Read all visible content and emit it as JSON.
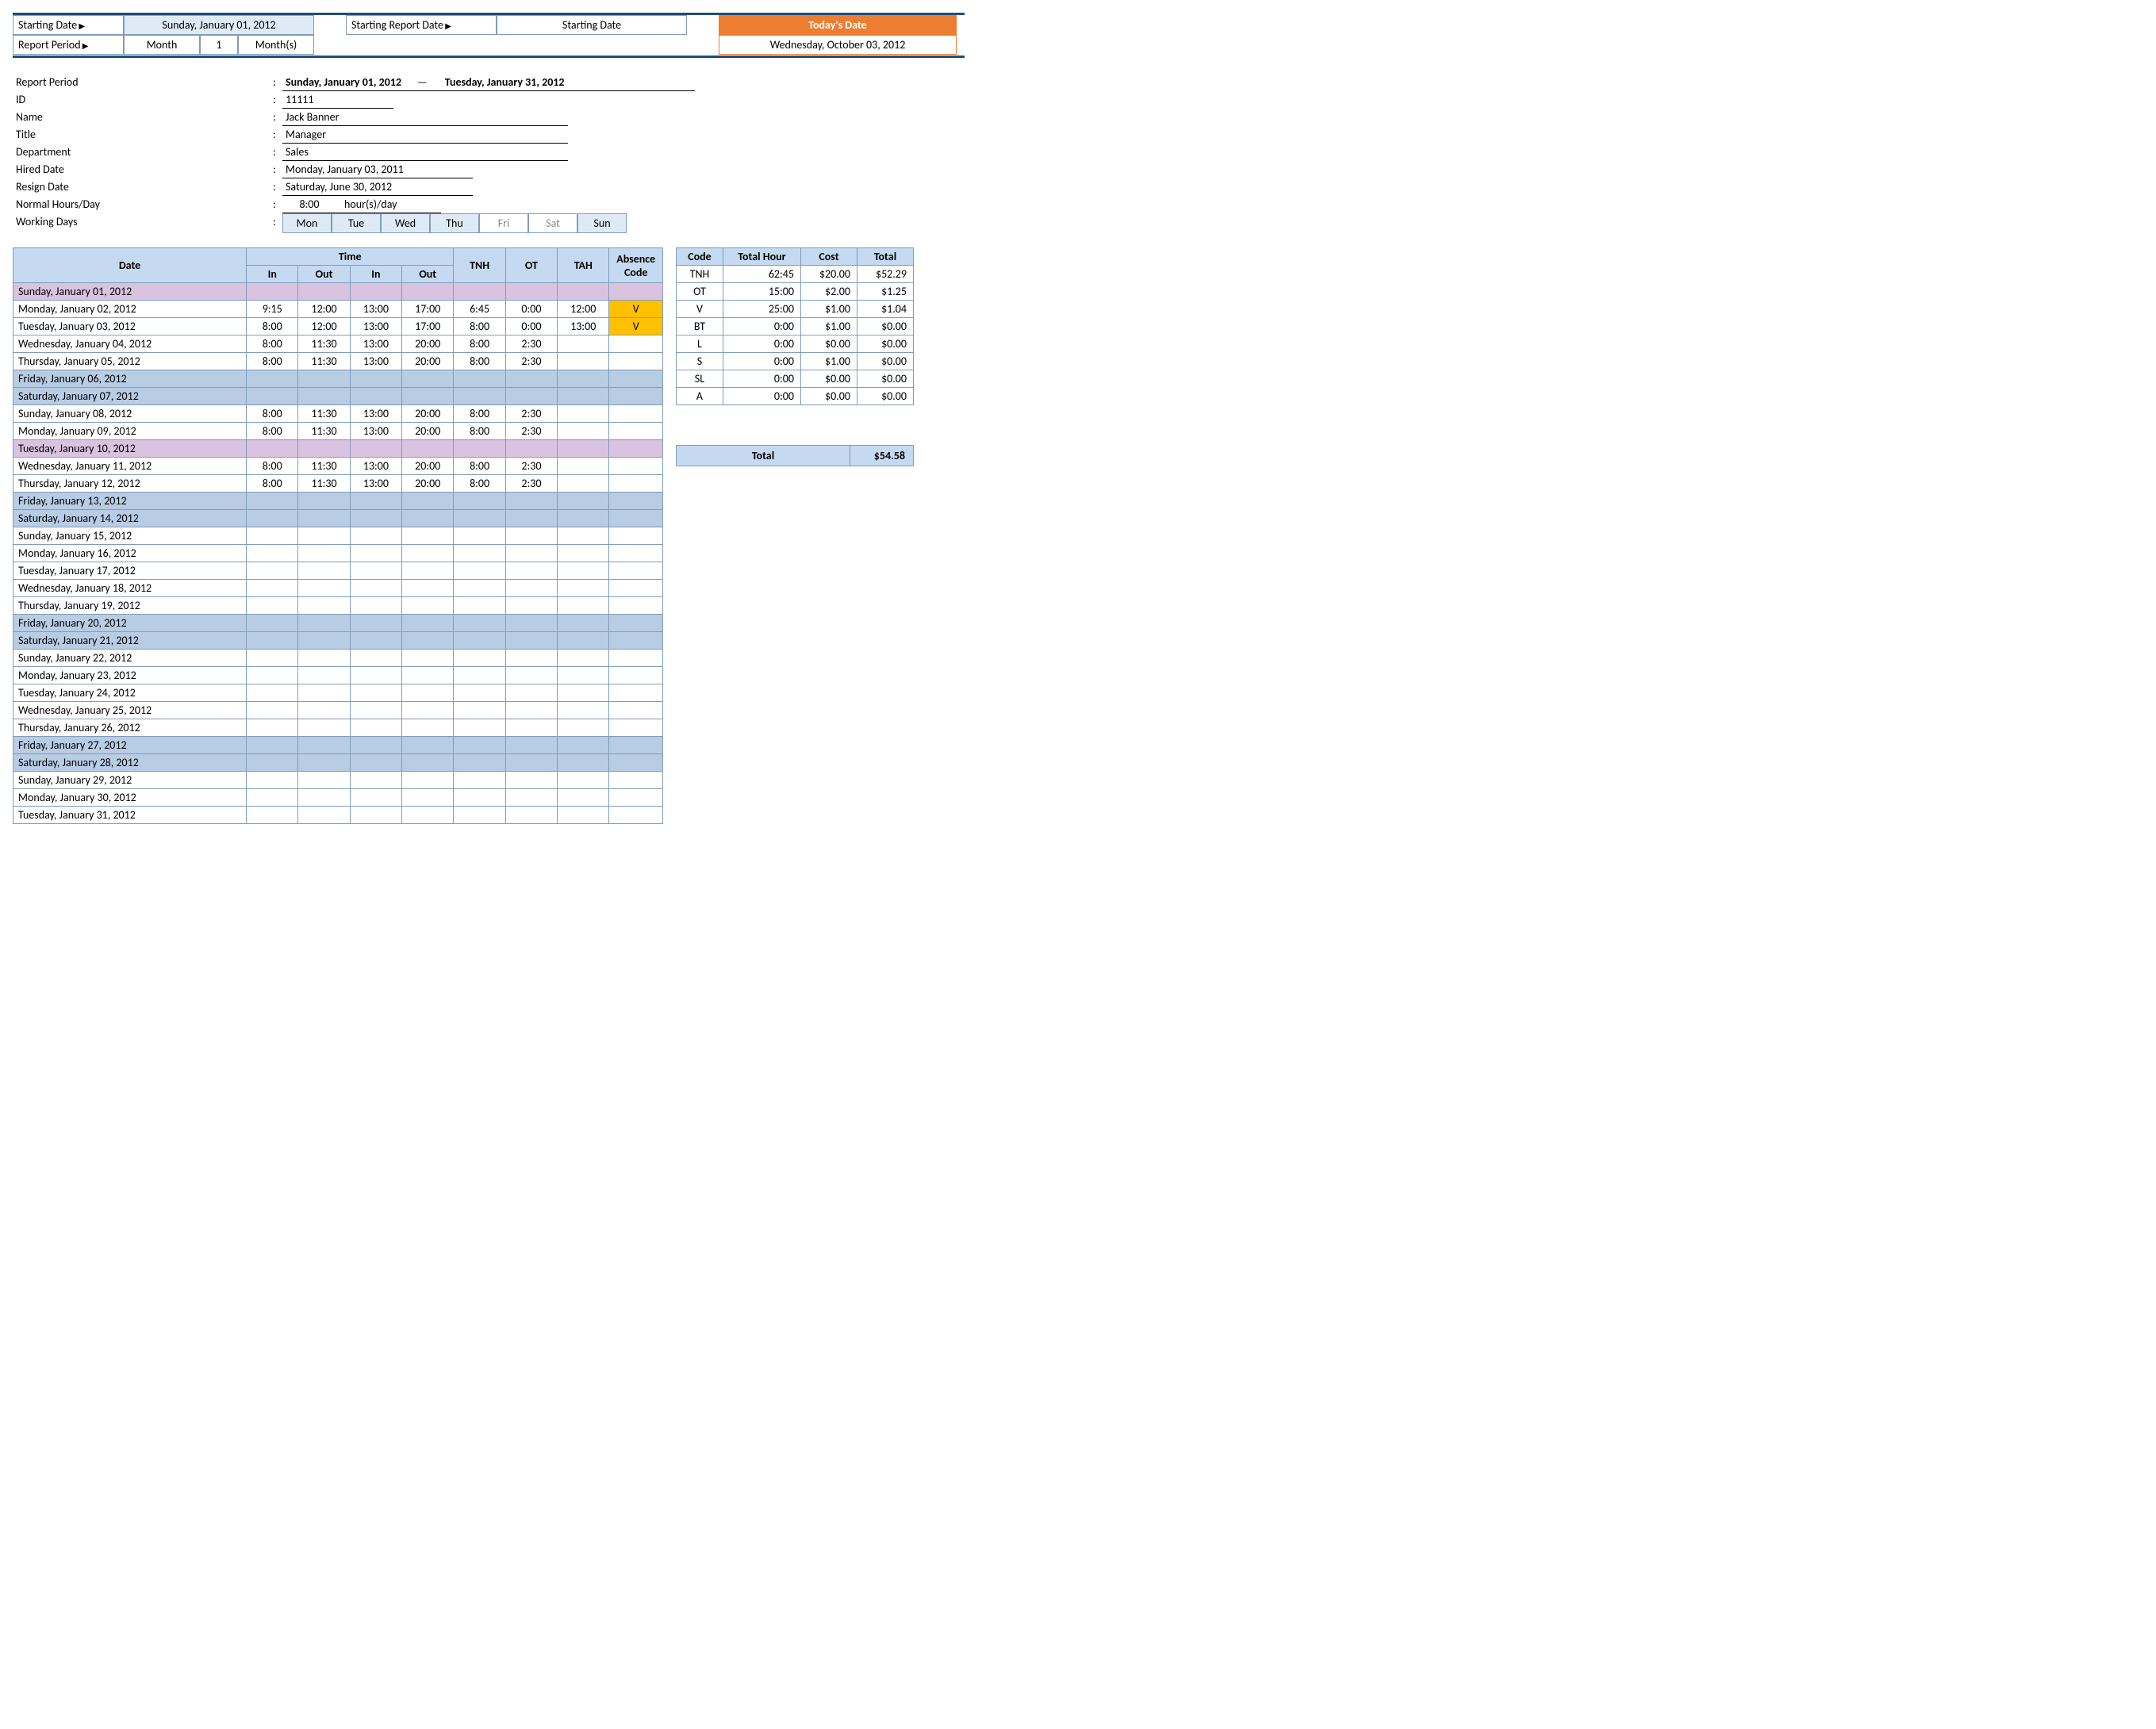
{
  "controls": {
    "startingDateLabel": "Starting Date",
    "startingDateValue": "Sunday, January 01, 2012",
    "startingReportDateLabel": "Starting Report Date",
    "startingReportDateValue": "Starting Date",
    "reportPeriodLabel": "Report Period",
    "reportPeriodUnit": "Month",
    "reportPeriodCount": "1",
    "reportPeriodUnitPlural": "Month(s)",
    "todaysDateLabel": "Today's Date",
    "todaysDateValue": "Wednesday, October 03, 2012"
  },
  "info": {
    "reportPeriodLabel": "Report Period",
    "reportPeriodStart": "Sunday, January 01, 2012",
    "reportPeriodEnd": "Tuesday, January 31, 2012",
    "idLabel": "ID",
    "id": "11111",
    "nameLabel": "Name",
    "name": "Jack Banner",
    "titleLabel": "Title",
    "title": "Manager",
    "deptLabel": "Department",
    "dept": "Sales",
    "hiredLabel": "Hired Date",
    "hired": "Monday, January 03, 2011",
    "resignLabel": "Resign Date",
    "resign": "Saturday, June 30, 2012",
    "hoursLabel": "Normal Hours/Day",
    "hoursVal": "8:00",
    "hoursSuffix": "hour(s)/day",
    "workingDaysLabel": "Working Days",
    "days": [
      "Mon",
      "Tue",
      "Wed",
      "Thu",
      "Fri",
      "Sat",
      "Sun"
    ],
    "daysOff": [
      false,
      false,
      false,
      false,
      true,
      true,
      false
    ]
  },
  "tsHeaders": {
    "date": "Date",
    "time": "Time",
    "in": "In",
    "out": "Out",
    "tnh": "TNH",
    "ot": "OT",
    "tah": "TAH",
    "abs": "Absence Code"
  },
  "ts": [
    {
      "d": "Sunday, January 01, 2012",
      "cls": "holiday"
    },
    {
      "d": "Monday, January 02, 2012",
      "i1": "9:15",
      "o1": "12:00",
      "i2": "13:00",
      "o2": "17:00",
      "tnh": "6:45",
      "ot": "0:00",
      "tah": "12:00",
      "abs": "V"
    },
    {
      "d": "Tuesday, January 03, 2012",
      "i1": "8:00",
      "o1": "12:00",
      "i2": "13:00",
      "o2": "17:00",
      "tnh": "8:00",
      "ot": "0:00",
      "tah": "13:00",
      "abs": "V"
    },
    {
      "d": "Wednesday, January 04, 2012",
      "i1": "8:00",
      "o1": "11:30",
      "i2": "13:00",
      "o2": "20:00",
      "tnh": "8:00",
      "ot": "2:30"
    },
    {
      "d": "Thursday, January 05, 2012",
      "i1": "8:00",
      "o1": "11:30",
      "i2": "13:00",
      "o2": "20:00",
      "tnh": "8:00",
      "ot": "2:30"
    },
    {
      "d": "Friday, January 06, 2012",
      "cls": "weekend"
    },
    {
      "d": "Saturday, January 07, 2012",
      "cls": "weekend"
    },
    {
      "d": "Sunday, January 08, 2012",
      "i1": "8:00",
      "o1": "11:30",
      "i2": "13:00",
      "o2": "20:00",
      "tnh": "8:00",
      "ot": "2:30"
    },
    {
      "d": "Monday, January 09, 2012",
      "i1": "8:00",
      "o1": "11:30",
      "i2": "13:00",
      "o2": "20:00",
      "tnh": "8:00",
      "ot": "2:30"
    },
    {
      "d": "Tuesday, January 10, 2012",
      "cls": "holiday"
    },
    {
      "d": "Wednesday, January 11, 2012",
      "i1": "8:00",
      "o1": "11:30",
      "i2": "13:00",
      "o2": "20:00",
      "tnh": "8:00",
      "ot": "2:30"
    },
    {
      "d": "Thursday, January 12, 2012",
      "i1": "8:00",
      "o1": "11:30",
      "i2": "13:00",
      "o2": "20:00",
      "tnh": "8:00",
      "ot": "2:30"
    },
    {
      "d": "Friday, January 13, 2012",
      "cls": "weekend"
    },
    {
      "d": "Saturday, January 14, 2012",
      "cls": "weekend"
    },
    {
      "d": "Sunday, January 15, 2012"
    },
    {
      "d": "Monday, January 16, 2012"
    },
    {
      "d": "Tuesday, January 17, 2012"
    },
    {
      "d": "Wednesday, January 18, 2012"
    },
    {
      "d": "Thursday, January 19, 2012"
    },
    {
      "d": "Friday, January 20, 2012",
      "cls": "weekend"
    },
    {
      "d": "Saturday, January 21, 2012",
      "cls": "weekend"
    },
    {
      "d": "Sunday, January 22, 2012"
    },
    {
      "d": "Monday, January 23, 2012"
    },
    {
      "d": "Tuesday, January 24, 2012"
    },
    {
      "d": "Wednesday, January 25, 2012"
    },
    {
      "d": "Thursday, January 26, 2012"
    },
    {
      "d": "Friday, January 27, 2012",
      "cls": "weekend"
    },
    {
      "d": "Saturday, January 28, 2012",
      "cls": "weekend"
    },
    {
      "d": "Sunday, January 29, 2012"
    },
    {
      "d": "Monday, January 30, 2012"
    },
    {
      "d": "Tuesday, January 31, 2012"
    }
  ],
  "smHeaders": {
    "code": "Code",
    "hour": "Total Hour",
    "cost": "Cost",
    "total": "Total"
  },
  "sm": [
    {
      "c": "TNH",
      "h": "62:45",
      "cost": "$20.00",
      "t": "$52.29"
    },
    {
      "c": "OT",
      "h": "15:00",
      "cost": "$2.00",
      "t": "$1.25"
    },
    {
      "c": "V",
      "h": "25:00",
      "cost": "$1.00",
      "t": "$1.04"
    },
    {
      "c": "BT",
      "h": "0:00",
      "cost": "$1.00",
      "t": "$0.00"
    },
    {
      "c": "L",
      "h": "0:00",
      "cost": "$0.00",
      "t": "$0.00"
    },
    {
      "c": "S",
      "h": "0:00",
      "cost": "$1.00",
      "t": "$0.00"
    },
    {
      "c": "SL",
      "h": "0:00",
      "cost": "$0.00",
      "t": "$0.00"
    },
    {
      "c": "A",
      "h": "0:00",
      "cost": "$0.00",
      "t": "$0.00"
    }
  ],
  "grand": {
    "label": "Total",
    "value": "$54.58"
  }
}
